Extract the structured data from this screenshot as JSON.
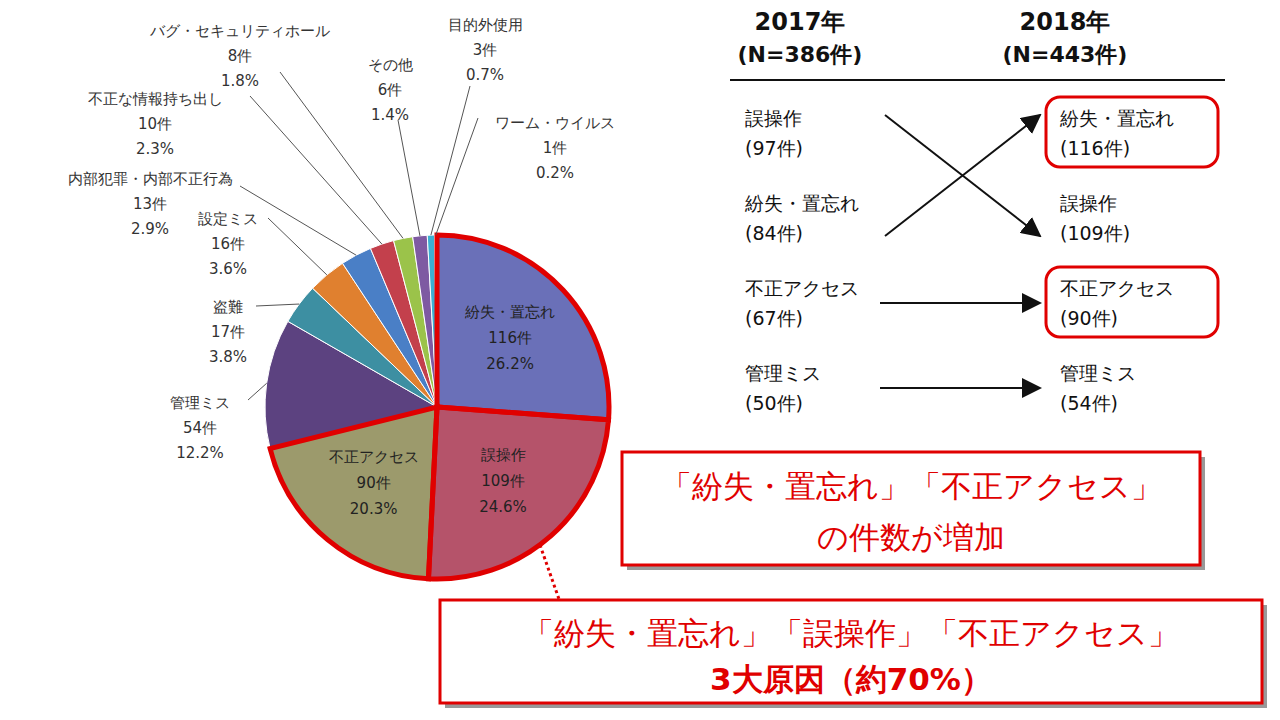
{
  "chart_data": {
    "type": "pie",
    "categories": [
      "紛失・置忘れ",
      "誤操作",
      "不正アクセス",
      "管理ミス",
      "盗難",
      "設定ミス",
      "内部犯罪・内部不正行為",
      "不正な情報持ち出し",
      "バグ・セキュリティホール",
      "その他",
      "目的外使用",
      "ワーム・ウイルス"
    ],
    "values": [
      116,
      109,
      90,
      54,
      17,
      16,
      13,
      10,
      8,
      6,
      3,
      1
    ],
    "value_labels": [
      "116件",
      "109件",
      "90件",
      "54件",
      "17件",
      "16件",
      "13件",
      "10件",
      "8件",
      "6件",
      "3件",
      "1件"
    ],
    "percent_labels": [
      "26.2%",
      "24.6%",
      "20.3%",
      "12.2%",
      "3.8%",
      "3.6%",
      "2.9%",
      "2.3%",
      "1.8%",
      "1.4%",
      "0.7%",
      "0.2%"
    ],
    "colors": [
      "#6a70b8",
      "#b5536a",
      "#9c9a6c",
      "#5c4280",
      "#3d8fa2",
      "#e0802f",
      "#4a7fc6",
      "#c3404c",
      "#9bc34a",
      "#7e5aa2",
      "#3cb0d2",
      "#f0a040"
    ],
    "highlighted": [
      true,
      true,
      true,
      false,
      false,
      false,
      false,
      false,
      false,
      false,
      false,
      false
    ],
    "data_labels": true
  },
  "comparison": {
    "left": {
      "title": "2017年",
      "subtitle": "(N=386件)",
      "items": [
        {
          "name": "誤操作",
          "count": "(97件)"
        },
        {
          "name": "紛失・置忘れ",
          "count": "(84件)"
        },
        {
          "name": "不正アクセス",
          "count": "(67件)"
        },
        {
          "name": "管理ミス",
          "count": "(50件)"
        }
      ]
    },
    "right": {
      "title": "2018年",
      "subtitle": "(N=443件)",
      "items": [
        {
          "name": "紛失・置忘れ",
          "count": "(116件)",
          "highlight": true
        },
        {
          "name": "誤操作",
          "count": "(109件)",
          "highlight": false
        },
        {
          "name": "不正アクセス",
          "count": "(90件)",
          "highlight": true
        },
        {
          "name": "管理ミス",
          "count": "(54件)",
          "highlight": false
        }
      ]
    }
  },
  "annotations": [
    {
      "lines": [
        "「紛失・置忘れ」「不正アクセス」",
        "の件数が増加"
      ]
    },
    {
      "lines": [
        "「紛失・置忘れ」「誤操作」「不正アクセス」",
        "3大原因（約70%）"
      ]
    }
  ]
}
